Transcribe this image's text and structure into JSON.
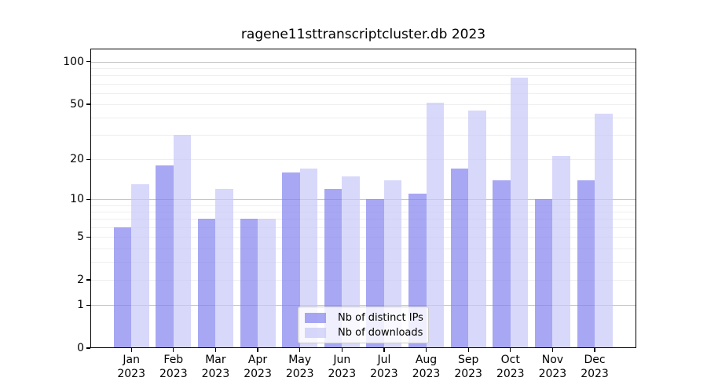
{
  "title": "ragene11sttranscriptcluster.db 2023",
  "chart_data": {
    "type": "bar",
    "title": "ragene11sttranscriptcluster.db 2023",
    "categories": [
      "Jan",
      "Feb",
      "Mar",
      "Apr",
      "May",
      "Jun",
      "Jul",
      "Aug",
      "Sep",
      "Oct",
      "Nov",
      "Dec"
    ],
    "year": "2023",
    "series": [
      {
        "name": "Nb of distinct IPs",
        "color": "rgba(130,130,240,0.7)",
        "values": [
          6,
          18,
          7,
          7,
          16,
          12,
          10,
          11,
          17,
          14,
          10,
          14
        ]
      },
      {
        "name": "Nb of downloads",
        "color": "rgba(200,200,248,0.7)",
        "values": [
          13,
          30,
          12,
          7,
          17,
          15,
          14,
          51,
          45,
          77,
          21,
          43
        ]
      }
    ],
    "yscale": "log1p",
    "yticks": [
      0,
      1,
      2,
      5,
      10,
      20,
      50,
      100
    ],
    "minor_gridlines": [
      2,
      3,
      4,
      5,
      6,
      7,
      8,
      9,
      20,
      30,
      40,
      50,
      60,
      70,
      80,
      90
    ],
    "major_gridlines": [
      1,
      10,
      100
    ],
    "ylim": [
      0,
      124
    ],
    "xlabel": "",
    "ylabel": "",
    "grid": true,
    "legend_position": "inside lower-center",
    "colors": {
      "major_grid": "#c6c6c6",
      "minor_grid": "#eeeeee",
      "axis": "#000000",
      "background": "#ffffff"
    }
  }
}
